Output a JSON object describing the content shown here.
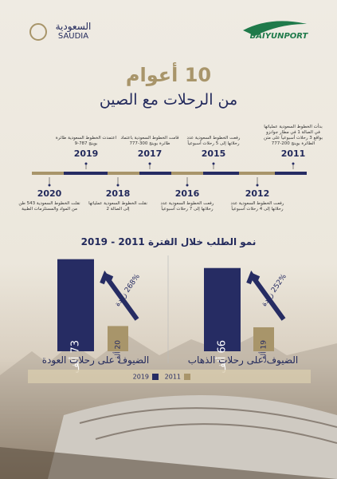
{
  "header": {
    "left_logo_ar": "السعودية",
    "left_logo_en": "SAUDIA",
    "right_logo": "BAIYUNPORT"
  },
  "title_line1": "10 أعوام",
  "title_line2": "من الرحلات مع الصين",
  "timeline": [
    {
      "year": "2011",
      "text": "بدأت الخطوط السعودية عملياتها في الصالة 1 في مطار جوانزو بواقع 3 رحلات أسبوعياً على متن الطائرة بوينج 200-777"
    },
    {
      "year": "2012",
      "text": "رفعت الخطوط السعودية عدد رحلاتها إلى 4 رحلات أسبوعياً"
    },
    {
      "year": "2015",
      "text": "رفعت الخطوط السعودية عدد رحلاتها إلى 5 رحلات أسبوعياً"
    },
    {
      "year": "2016",
      "text": "رفعت الخطوط السعودية عدد رحلاتها إلى 7 رحلات أسبوعياً"
    },
    {
      "year": "2017",
      "text": "قامت الخطوط السعودية باعتماد طائرة بوينج 300-777"
    },
    {
      "year": "2018",
      "text": "نقلت الخطوط السعودية عملياتها إلى الصالة 2"
    },
    {
      "year": "2019",
      "text": "اعتمدت الخطوط السعودية طائرة بوينج 787-9"
    },
    {
      "year": "2020",
      "text": "نقلت الخطوط السعودية 543 طن من المواد والمستلزمات الطبية"
    }
  ],
  "chart_data": {
    "type": "bar",
    "title": "نمو الطلب خلال الفترة 2011 - 2019",
    "categories": [
      "الضيوف على رحلات العودة",
      "الضيوف على رحلات الذهاب"
    ],
    "series": [
      {
        "name": "2019",
        "color": "#262c63",
        "values": [
          73,
          66
        ],
        "value_labels": [
          "73 ألف",
          "66 ألف"
        ]
      },
      {
        "name": "2011",
        "color": "#a8956a",
        "values": [
          20,
          19
        ],
        "value_labels": [
          "20 ألف",
          "19 ألف"
        ]
      }
    ],
    "annotations": [
      "268% زيادة",
      "252% زيادة"
    ]
  }
}
